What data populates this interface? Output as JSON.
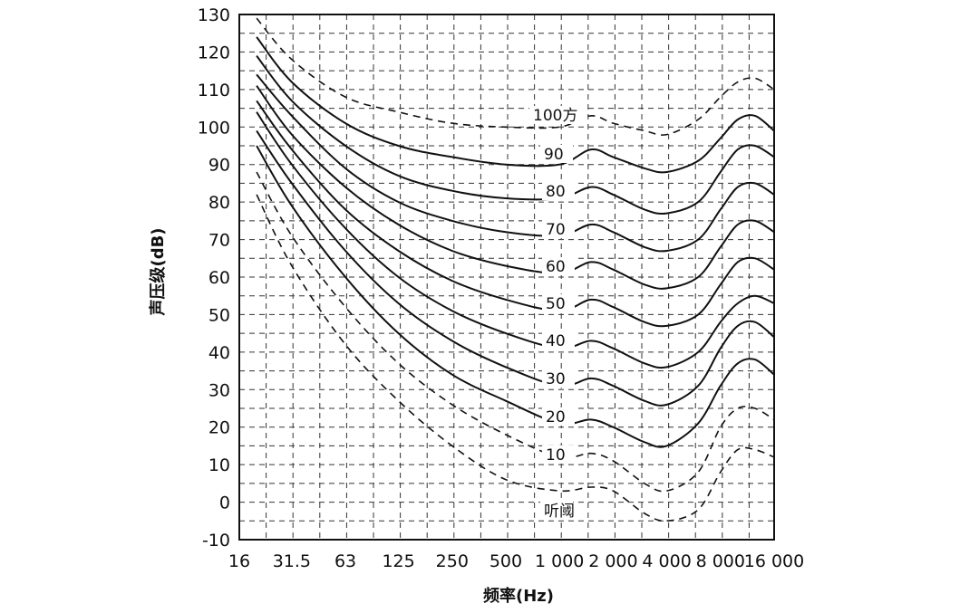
{
  "chart_data": {
    "type": "line",
    "xlabel": "频率(Hz)",
    "ylabel": "声压级(dB)",
    "x_scale": "log",
    "x_ticks": [
      16,
      31.5,
      63,
      125,
      250,
      500,
      1000,
      2000,
      4000,
      8000,
      16000
    ],
    "x_tick_labels": [
      "16",
      "31.5",
      "63",
      "125",
      "250",
      "500",
      "1 000",
      "2 000",
      "4 000",
      "8 000",
      "16 000"
    ],
    "y_ticks": [
      -10,
      0,
      10,
      20,
      30,
      40,
      50,
      60,
      70,
      80,
      90,
      100,
      110,
      120,
      130
    ],
    "xlim": [
      16,
      16000
    ],
    "ylim": [
      -10,
      130
    ],
    "grid": true,
    "series": [
      {
        "name": "听阈",
        "style": "dashed",
        "x": [
          20,
          31.5,
          63,
          125,
          250,
          500,
          1000,
          1500,
          2000,
          3000,
          4000,
          6000,
          8000,
          10000,
          12500,
          16000
        ],
        "y": [
          82,
          63,
          42,
          27,
          15,
          6,
          3,
          4,
          3,
          -3,
          -5,
          -2,
          8,
          14,
          14,
          12
        ]
      },
      {
        "name": "10",
        "style": "dashed",
        "x": [
          20,
          31.5,
          63,
          125,
          250,
          500,
          1000,
          1500,
          2000,
          3000,
          4000,
          6000,
          8000,
          10000,
          12500,
          16000
        ],
        "y": [
          88,
          71,
          52,
          37,
          26,
          18,
          12,
          13,
          11,
          5,
          3,
          8,
          20,
          25,
          25,
          22
        ]
      },
      {
        "name": "20",
        "style": "solid",
        "x": [
          20,
          31.5,
          63,
          125,
          250,
          500,
          1000,
          1500,
          2000,
          3000,
          4000,
          6000,
          8000,
          10000,
          12500,
          16000
        ],
        "y": [
          95,
          79,
          60,
          45,
          34,
          27,
          21,
          22,
          20,
          16,
          15,
          21,
          31,
          37,
          38,
          34
        ]
      },
      {
        "name": "30",
        "style": "solid",
        "x": [
          20,
          31.5,
          63,
          125,
          250,
          500,
          1000,
          1500,
          2000,
          3000,
          4000,
          6000,
          8000,
          10000,
          12500,
          16000
        ],
        "y": [
          99,
          85,
          67,
          53,
          43,
          36,
          31,
          33,
          31,
          27,
          26,
          31,
          41,
          47,
          48,
          44
        ]
      },
      {
        "name": "40",
        "style": "solid",
        "x": [
          20,
          31.5,
          63,
          125,
          250,
          500,
          1000,
          1500,
          2000,
          3000,
          4000,
          6000,
          8000,
          10000,
          12500,
          16000
        ],
        "y": [
          104,
          90,
          73,
          60,
          51,
          45,
          41,
          43,
          41,
          37,
          36,
          40,
          48,
          53,
          55,
          53
        ]
      },
      {
        "name": "50",
        "style": "solid",
        "x": [
          20,
          31.5,
          63,
          125,
          250,
          500,
          1000,
          1500,
          2000,
          3000,
          4000,
          6000,
          8000,
          10000,
          12500,
          16000
        ],
        "y": [
          107,
          94,
          78,
          67,
          59,
          54,
          51,
          54,
          52,
          48,
          47,
          50,
          58,
          64,
          65,
          62
        ]
      },
      {
        "name": "60",
        "style": "solid",
        "x": [
          20,
          31.5,
          63,
          125,
          250,
          500,
          1000,
          1500,
          2000,
          3000,
          4000,
          6000,
          8000,
          10000,
          12500,
          16000
        ],
        "y": [
          111,
          98,
          84,
          74,
          67,
          63,
          61,
          64,
          62,
          58,
          57,
          60,
          68,
          74,
          75,
          72
        ]
      },
      {
        "name": "70",
        "style": "solid",
        "x": [
          20,
          31.5,
          63,
          125,
          250,
          500,
          1000,
          1500,
          2000,
          3000,
          4000,
          6000,
          8000,
          10000,
          12500,
          16000
        ],
        "y": [
          114,
          103,
          89,
          80,
          75,
          72,
          71,
          74,
          72,
          68,
          67,
          70,
          78,
          84,
          85,
          82
        ]
      },
      {
        "name": "80",
        "style": "solid",
        "x": [
          20,
          31.5,
          63,
          125,
          250,
          500,
          1000,
          1500,
          2000,
          3000,
          4000,
          6000,
          8000,
          10000,
          12500,
          16000
        ],
        "y": [
          119,
          107,
          95,
          87,
          83,
          81,
          81,
          84,
          82,
          78,
          77,
          80,
          88,
          94,
          95,
          92
        ]
      },
      {
        "name": "90",
        "style": "solid",
        "x": [
          20,
          31.5,
          63,
          125,
          250,
          500,
          1000,
          1500,
          2000,
          3000,
          4000,
          6000,
          8000,
          10000,
          12500,
          16000
        ],
        "y": [
          124,
          112,
          101,
          95,
          92,
          90,
          90,
          94,
          92,
          89,
          88,
          91,
          97,
          102,
          103,
          99
        ]
      },
      {
        "name": "100方",
        "style": "dashed",
        "x": [
          20,
          31.5,
          63,
          125,
          250,
          500,
          1000,
          1500,
          2000,
          3000,
          4000,
          6000,
          8000,
          10000,
          12500,
          16000
        ],
        "y": [
          129,
          118,
          108,
          104,
          101,
          100,
          100,
          103,
          101,
          99,
          98,
          102,
          108,
          112,
          113,
          110
        ]
      }
    ]
  }
}
